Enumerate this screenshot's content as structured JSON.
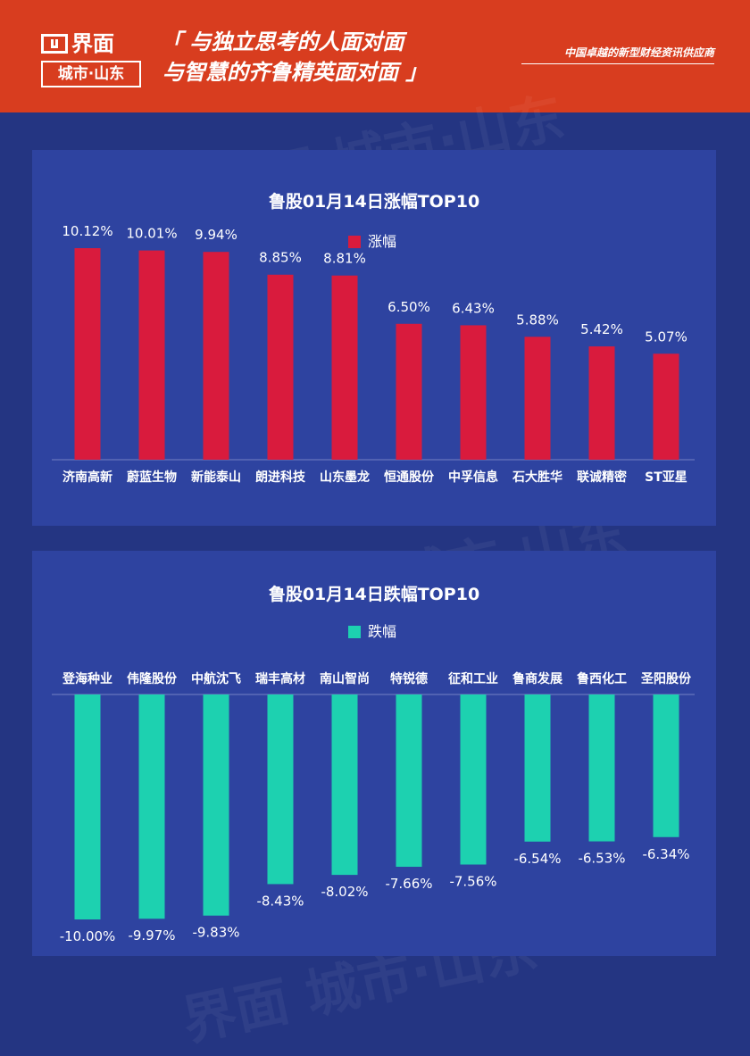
{
  "header": {
    "logo_main": "界面",
    "logo_sub": "城市·山东",
    "slogan_line1": "「 与独立思考的人面对面",
    "slogan_line2": "与智慧的齐鲁精英面对面 」",
    "tagline": "中国卓越的新型财经资讯供应商",
    "background_color": "#d83d1f"
  },
  "watermark_text": "界面 城市·山东",
  "chart_data": [
    {
      "type": "bar",
      "title": "鲁股01月14日涨幅TOP10",
      "legend": "涨幅",
      "legend_position": "top",
      "color": "#d91b3d",
      "categories": [
        "济南高新",
        "蔚蓝生物",
        "新能泰山",
        "朗进科技",
        "山东墨龙",
        "恒通股份",
        "中孚信息",
        "石大胜华",
        "联诚精密",
        "ST亚星"
      ],
      "values": [
        10.12,
        10.01,
        9.94,
        8.85,
        8.81,
        6.5,
        6.43,
        5.88,
        5.42,
        5.07
      ],
      "labels": [
        "10.12%",
        "10.01%",
        "9.94%",
        "8.85%",
        "8.81%",
        "6.50%",
        "6.43%",
        "5.88%",
        "5.42%",
        "5.07%"
      ],
      "ylim": [
        0,
        10.12
      ],
      "grid": false
    },
    {
      "type": "bar",
      "title": "鲁股01月14日跌幅TOP10",
      "legend": "跌幅",
      "legend_position": "top",
      "color": "#1dd1b0",
      "categories": [
        "登海种业",
        "伟隆股份",
        "中航沈飞",
        "瑞丰高材",
        "南山智尚",
        "特锐德",
        "征和工业",
        "鲁商发展",
        "鲁西化工",
        "圣阳股份"
      ],
      "values": [
        -10.0,
        -9.97,
        -9.83,
        -8.43,
        -8.02,
        -7.66,
        -7.56,
        -6.54,
        -6.53,
        -6.34
      ],
      "labels": [
        "-10.00%",
        "-9.97%",
        "-9.83%",
        "-8.43%",
        "-8.02%",
        "-7.66%",
        "-7.56%",
        "-6.54%",
        "-6.53%",
        "-6.34%"
      ],
      "ylim": [
        -10.0,
        0
      ],
      "grid": false
    }
  ]
}
